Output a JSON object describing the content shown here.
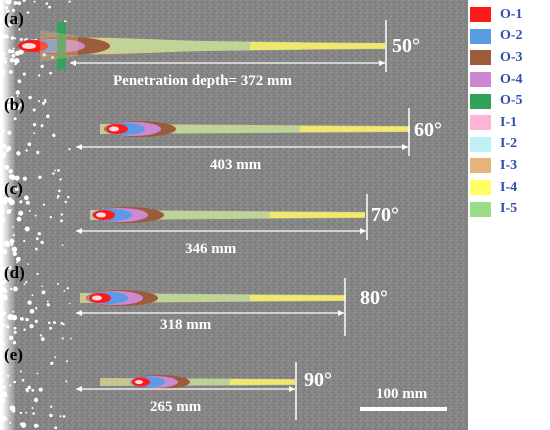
{
  "panels": [
    {
      "label": "(a)",
      "angle": "50°",
      "depth_text": "Penetration depth= 372 mm"
    },
    {
      "label": "(b)",
      "angle": "60°",
      "depth_text": "403 mm"
    },
    {
      "label": "(c)",
      "angle": "70°",
      "depth_text": "346 mm"
    },
    {
      "label": "(d)",
      "angle": "80°",
      "depth_text": "318 mm"
    },
    {
      "label": "(e)",
      "angle": "90°",
      "depth_text": "265 mm"
    }
  ],
  "scale_bar": {
    "label": "100 mm"
  },
  "legend": [
    {
      "label": "O-1",
      "color": "#ff1a1a"
    },
    {
      "label": "O-2",
      "color": "#5b9be6"
    },
    {
      "label": "O-3",
      "color": "#9a5c3a"
    },
    {
      "label": "O-4",
      "color": "#cc88d0"
    },
    {
      "label": "O-5",
      "color": "#2fa35a"
    },
    {
      "label": "I-1",
      "color": "#ffb3d6"
    },
    {
      "label": "I-2",
      "color": "#bff0f5"
    },
    {
      "label": "I-3",
      "color": "#e6b47a"
    },
    {
      "label": "I-4",
      "color": "#ffff66"
    },
    {
      "label": "I-5",
      "color": "#99dd88"
    }
  ]
}
